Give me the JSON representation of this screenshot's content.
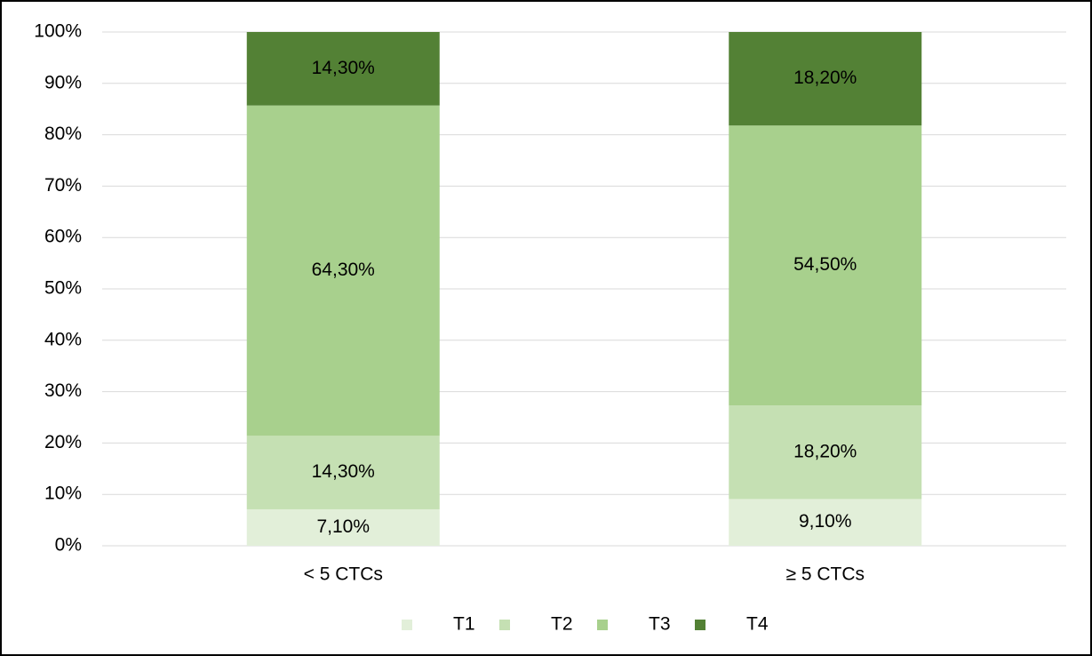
{
  "chart_data": {
    "type": "stacked_bar",
    "categories": [
      "< 5 CTCs",
      "≥ 5 CTCs"
    ],
    "series": [
      {
        "name": "T1",
        "color": "#e2efd9",
        "values": [
          7.1,
          9.1
        ],
        "value_labels": [
          "7,10%",
          "9,10%"
        ]
      },
      {
        "name": "T2",
        "color": "#c5e0b3",
        "values": [
          14.3,
          18.2
        ],
        "value_labels": [
          "14,30%",
          "18,20%"
        ]
      },
      {
        "name": "T3",
        "color": "#a8d08d",
        "values": [
          64.3,
          54.5
        ],
        "value_labels": [
          "64,30%",
          "54,50%"
        ]
      },
      {
        "name": "T4",
        "color": "#538135",
        "values": [
          14.3,
          18.2
        ],
        "value_labels": [
          "14,30%",
          "18,20%"
        ]
      }
    ],
    "ylim": [
      0,
      100
    ],
    "yticks": [
      {
        "value": 0,
        "label": "0%"
      },
      {
        "value": 10,
        "label": "10%"
      },
      {
        "value": 20,
        "label": "20%"
      },
      {
        "value": 30,
        "label": "30%"
      },
      {
        "value": 40,
        "label": "40%"
      },
      {
        "value": 50,
        "label": "50%"
      },
      {
        "value": 60,
        "label": "60%"
      },
      {
        "value": 70,
        "label": "70%"
      },
      {
        "value": 80,
        "label": "80%"
      },
      {
        "value": 90,
        "label": "90%"
      },
      {
        "value": 100,
        "label": "100%"
      }
    ],
    "grid": true,
    "legend": "bottom"
  }
}
